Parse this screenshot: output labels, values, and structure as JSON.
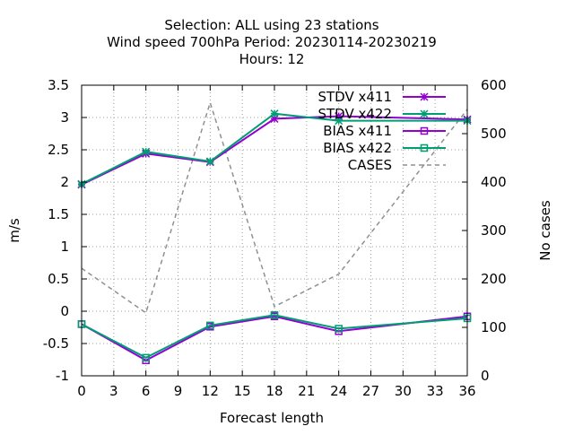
{
  "chart_data": {
    "type": "line",
    "title_lines": [
      "Selection: ALL using    23 stations",
      "Wind speed 700hPa   Period: 20230114-20230219",
      "Hours:  12"
    ],
    "xlabel": "Forecast length",
    "ylabel": "m/s",
    "y2label": "No cases",
    "xlim": [
      0,
      36
    ],
    "ylim": [
      -1,
      3.5
    ],
    "y2lim": [
      0,
      600
    ],
    "xticks": [
      0,
      3,
      6,
      9,
      12,
      15,
      18,
      21,
      24,
      27,
      30,
      33,
      36
    ],
    "yticks": [
      -1,
      -0.5,
      0,
      0.5,
      1,
      1.5,
      2,
      2.5,
      3,
      3.5
    ],
    "y2ticks": [
      0,
      100,
      200,
      300,
      400,
      500,
      600
    ],
    "grid": true,
    "legend_position": "top-right",
    "series": [
      {
        "name": "STDV x411",
        "axis": "y1",
        "color": "#9400d3",
        "marker": "star",
        "x": [
          0,
          6,
          12,
          18,
          24,
          36
        ],
        "values": [
          1.96,
          2.44,
          2.31,
          2.98,
          3.02,
          2.97
        ]
      },
      {
        "name": "STDV x422",
        "axis": "y1",
        "color": "#009e73",
        "marker": "star",
        "x": [
          0,
          6,
          12,
          18,
          24,
          36
        ],
        "values": [
          1.97,
          2.47,
          2.32,
          3.06,
          2.95,
          2.95
        ]
      },
      {
        "name": "BIAS x411",
        "axis": "y1",
        "color": "#9400d3",
        "marker": "square",
        "x": [
          0,
          6,
          12,
          18,
          24,
          36
        ],
        "values": [
          -0.2,
          -0.76,
          -0.24,
          -0.08,
          -0.31,
          -0.08
        ]
      },
      {
        "name": "BIAS x422",
        "axis": "y1",
        "color": "#009e73",
        "marker": "square",
        "x": [
          0,
          6,
          12,
          18,
          24,
          36
        ],
        "values": [
          -0.2,
          -0.72,
          -0.22,
          -0.06,
          -0.27,
          -0.11
        ]
      },
      {
        "name": "CASES",
        "axis": "y2",
        "color": "#909090",
        "marker": "none",
        "dash": true,
        "x": [
          0,
          6,
          12,
          18,
          24,
          36
        ],
        "values": [
          222,
          130,
          564,
          143,
          210,
          550
        ]
      }
    ]
  }
}
